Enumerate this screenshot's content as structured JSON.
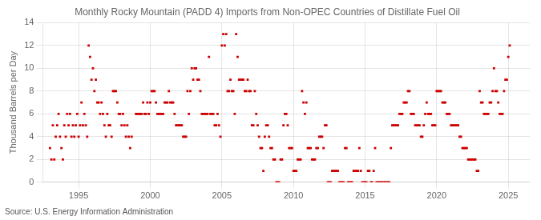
{
  "chart_data": {
    "type": "scatter",
    "title": "Monthly Rocky Mountain (PADD 4) Imports from Non-OPEC Countries of Distillate Fuel Oil",
    "ylabel": "Thousand Barrels per Day",
    "annotation": "Source: U.S. Energy Information Administration",
    "color": "#cc0000",
    "marker": "square",
    "grid": true,
    "xlim": [
      1992.5,
      2026.5
    ],
    "ylim": [
      0,
      14
    ],
    "xticks": [
      1995,
      2000,
      2005,
      2010,
      2015,
      2020,
      2025
    ],
    "yticks": [
      0,
      2,
      4,
      6,
      8,
      10,
      12,
      14
    ],
    "x": [
      1993.0,
      1993.1,
      1993.2,
      1993.3,
      1993.4,
      1993.5,
      1993.6,
      1993.7,
      1993.8,
      1993.9,
      1994.0,
      1994.1,
      1994.2,
      1994.3,
      1994.4,
      1994.5,
      1994.6,
      1994.7,
      1994.8,
      1994.9,
      1995.0,
      1995.1,
      1995.2,
      1995.3,
      1995.4,
      1995.5,
      1995.6,
      1995.7,
      1995.8,
      1995.9,
      1996.0,
      1996.1,
      1996.2,
      1996.3,
      1996.4,
      1996.5,
      1996.6,
      1996.7,
      1996.8,
      1996.9,
      1997.0,
      1997.1,
      1997.2,
      1997.3,
      1997.4,
      1997.5,
      1997.6,
      1997.7,
      1997.8,
      1997.9,
      1998.0,
      1998.1,
      1998.2,
      1998.3,
      1998.4,
      1998.5,
      1998.6,
      1998.7,
      1999.0,
      1999.1,
      1999.2,
      1999.3,
      1999.4,
      1999.5,
      1999.6,
      1999.7,
      1999.8,
      1999.9,
      2000.0,
      2000.1,
      2000.2,
      2000.3,
      2000.4,
      2000.5,
      2000.6,
      2000.7,
      2000.8,
      2000.9,
      2001.0,
      2001.1,
      2001.2,
      2001.3,
      2001.4,
      2001.5,
      2001.6,
      2001.7,
      2001.8,
      2001.9,
      2002.0,
      2002.1,
      2002.2,
      2002.3,
      2002.4,
      2002.5,
      2002.6,
      2002.7,
      2002.8,
      2002.9,
      2003.0,
      2003.1,
      2003.2,
      2003.3,
      2003.4,
      2003.5,
      2003.6,
      2003.7,
      2003.8,
      2003.9,
      2004.0,
      2004.1,
      2004.2,
      2004.3,
      2004.4,
      2004.5,
      2004.6,
      2004.7,
      2004.8,
      2004.9,
      2005.0,
      2005.1,
      2005.2,
      2005.3,
      2005.4,
      2005.5,
      2005.6,
      2005.7,
      2005.8,
      2005.9,
      2006.0,
      2006.1,
      2006.2,
      2006.3,
      2006.4,
      2006.5,
      2006.6,
      2006.7,
      2006.8,
      2006.9,
      2007.0,
      2007.1,
      2007.2,
      2007.3,
      2007.4,
      2007.5,
      2007.6,
      2007.7,
      2007.8,
      2007.9,
      2008.0,
      2008.1,
      2008.2,
      2008.3,
      2008.4,
      2008.5,
      2008.6,
      2008.7,
      2008.8,
      2008.9,
      2009.0,
      2009.1,
      2009.2,
      2009.3,
      2009.4,
      2009.5,
      2009.6,
      2009.7,
      2009.8,
      2009.9,
      2010.0,
      2010.1,
      2010.2,
      2010.3,
      2010.4,
      2010.5,
      2010.6,
      2010.7,
      2010.8,
      2010.9,
      2011.0,
      2011.1,
      2011.2,
      2011.3,
      2011.4,
      2011.5,
      2011.6,
      2011.7,
      2011.8,
      2011.9,
      2012.0,
      2012.1,
      2012.2,
      2012.3,
      2012.4,
      2012.5,
      2012.6,
      2012.7,
      2012.8,
      2012.9,
      2013.0,
      2013.1,
      2013.2,
      2013.3,
      2013.4,
      2013.5,
      2013.6,
      2013.7,
      2013.8,
      2013.9,
      2014.0,
      2014.1,
      2014.2,
      2014.3,
      2014.4,
      2014.5,
      2014.6,
      2014.7,
      2014.8,
      2014.9,
      2015.0,
      2015.1,
      2015.2,
      2015.3,
      2015.4,
      2015.5,
      2015.6,
      2015.7,
      2015.8,
      2015.9,
      2016.0,
      2016.1,
      2016.2,
      2016.3,
      2016.4,
      2016.5,
      2016.6,
      2016.7,
      2016.8,
      2016.9,
      2017.0,
      2017.1,
      2017.2,
      2017.3,
      2017.4,
      2017.5,
      2017.6,
      2017.7,
      2017.8,
      2017.9,
      2018.0,
      2018.1,
      2018.2,
      2018.3,
      2018.4,
      2018.5,
      2018.6,
      2018.7,
      2018.8,
      2018.9,
      2019.0,
      2019.1,
      2019.2,
      2019.3,
      2019.4,
      2019.5,
      2019.6,
      2019.7,
      2019.8,
      2019.9,
      2020.0,
      2020.1,
      2020.2,
      2020.3,
      2020.4,
      2020.5,
      2020.6,
      2020.7,
      2020.8,
      2020.9,
      2021.0,
      2021.1,
      2021.2,
      2021.3,
      2021.4,
      2021.5,
      2021.6,
      2021.7,
      2021.8,
      2021.9,
      2022.0,
      2022.1,
      2022.2,
      2022.3,
      2022.4,
      2022.5,
      2022.6,
      2022.7,
      2022.8,
      2022.9,
      2023.0,
      2023.1,
      2023.2,
      2023.3,
      2023.4,
      2023.5,
      2023.6,
      2023.7,
      2023.8,
      2023.9,
      2024.0,
      2024.1,
      2024.2,
      2024.3,
      2024.4,
      2024.5,
      2024.6,
      2024.7,
      2024.8,
      2024.9,
      2025.0,
      2025.1
    ],
    "values": [
      3,
      2,
      5,
      2,
      4,
      5,
      6,
      4,
      3,
      2,
      5,
      4,
      6,
      5,
      6,
      4,
      5,
      4,
      5,
      6,
      4,
      5,
      7,
      5,
      6,
      5,
      4,
      12,
      11,
      9,
      10,
      8,
      9,
      7,
      7,
      6,
      7,
      6,
      5,
      4,
      6,
      5,
      5,
      4,
      8,
      8,
      8,
      7,
      6,
      6,
      5,
      6,
      5,
      4,
      5,
      4,
      3,
      4,
      6,
      6,
      6,
      6,
      6,
      7,
      6,
      6,
      7,
      6,
      7,
      8,
      8,
      8,
      7,
      6,
      6,
      6,
      6,
      6,
      7,
      7,
      7,
      8,
      7,
      7,
      7,
      6,
      5,
      5,
      5,
      5,
      5,
      4,
      4,
      4,
      8,
      6,
      8,
      10,
      9,
      10,
      10,
      9,
      9,
      8,
      6,
      6,
      6,
      6,
      6,
      11,
      6,
      6,
      6,
      5,
      5,
      6,
      5,
      4,
      12,
      13,
      12,
      13,
      8,
      8,
      9,
      8,
      8,
      6,
      13,
      11,
      9,
      9,
      9,
      9,
      8,
      8,
      9,
      8,
      8,
      5,
      5,
      8,
      6,
      5,
      4,
      3,
      3,
      1,
      4,
      5,
      5,
      4,
      3,
      3,
      2,
      2,
      0,
      0,
      0,
      2,
      2,
      5,
      6,
      6,
      5,
      3,
      3,
      3,
      1,
      1,
      1,
      2,
      2,
      2,
      8,
      7,
      6,
      7,
      3,
      3,
      3,
      2,
      2,
      2,
      3,
      3,
      4,
      4,
      4,
      3,
      5,
      5,
      0,
      0,
      0,
      1,
      1,
      1,
      1,
      1,
      0,
      0,
      0,
      0,
      3,
      3,
      0,
      0,
      0,
      0,
      1,
      1,
      1,
      1,
      3,
      1,
      0,
      0,
      0,
      0,
      1,
      1,
      0,
      0,
      1,
      3,
      0,
      0,
      0,
      0,
      0,
      0,
      0,
      0,
      0,
      0,
      3,
      5,
      5,
      5,
      5,
      5,
      6,
      6,
      6,
      7,
      7,
      7,
      8,
      8,
      6,
      6,
      6,
      5,
      5,
      5,
      5,
      4,
      4,
      5,
      6,
      7,
      6,
      6,
      6,
      5,
      5,
      5,
      8,
      8,
      8,
      8,
      7,
      7,
      7,
      6,
      6,
      6,
      5,
      5,
      5,
      5,
      5,
      5,
      4,
      4,
      3,
      3,
      3,
      3,
      2,
      2,
      2,
      2,
      2,
      2,
      1,
      1,
      8,
      7,
      7,
      6,
      6,
      6,
      6,
      7,
      7,
      8,
      10,
      8,
      8,
      7,
      6,
      6,
      6,
      8,
      9,
      9,
      11,
      12
    ]
  }
}
